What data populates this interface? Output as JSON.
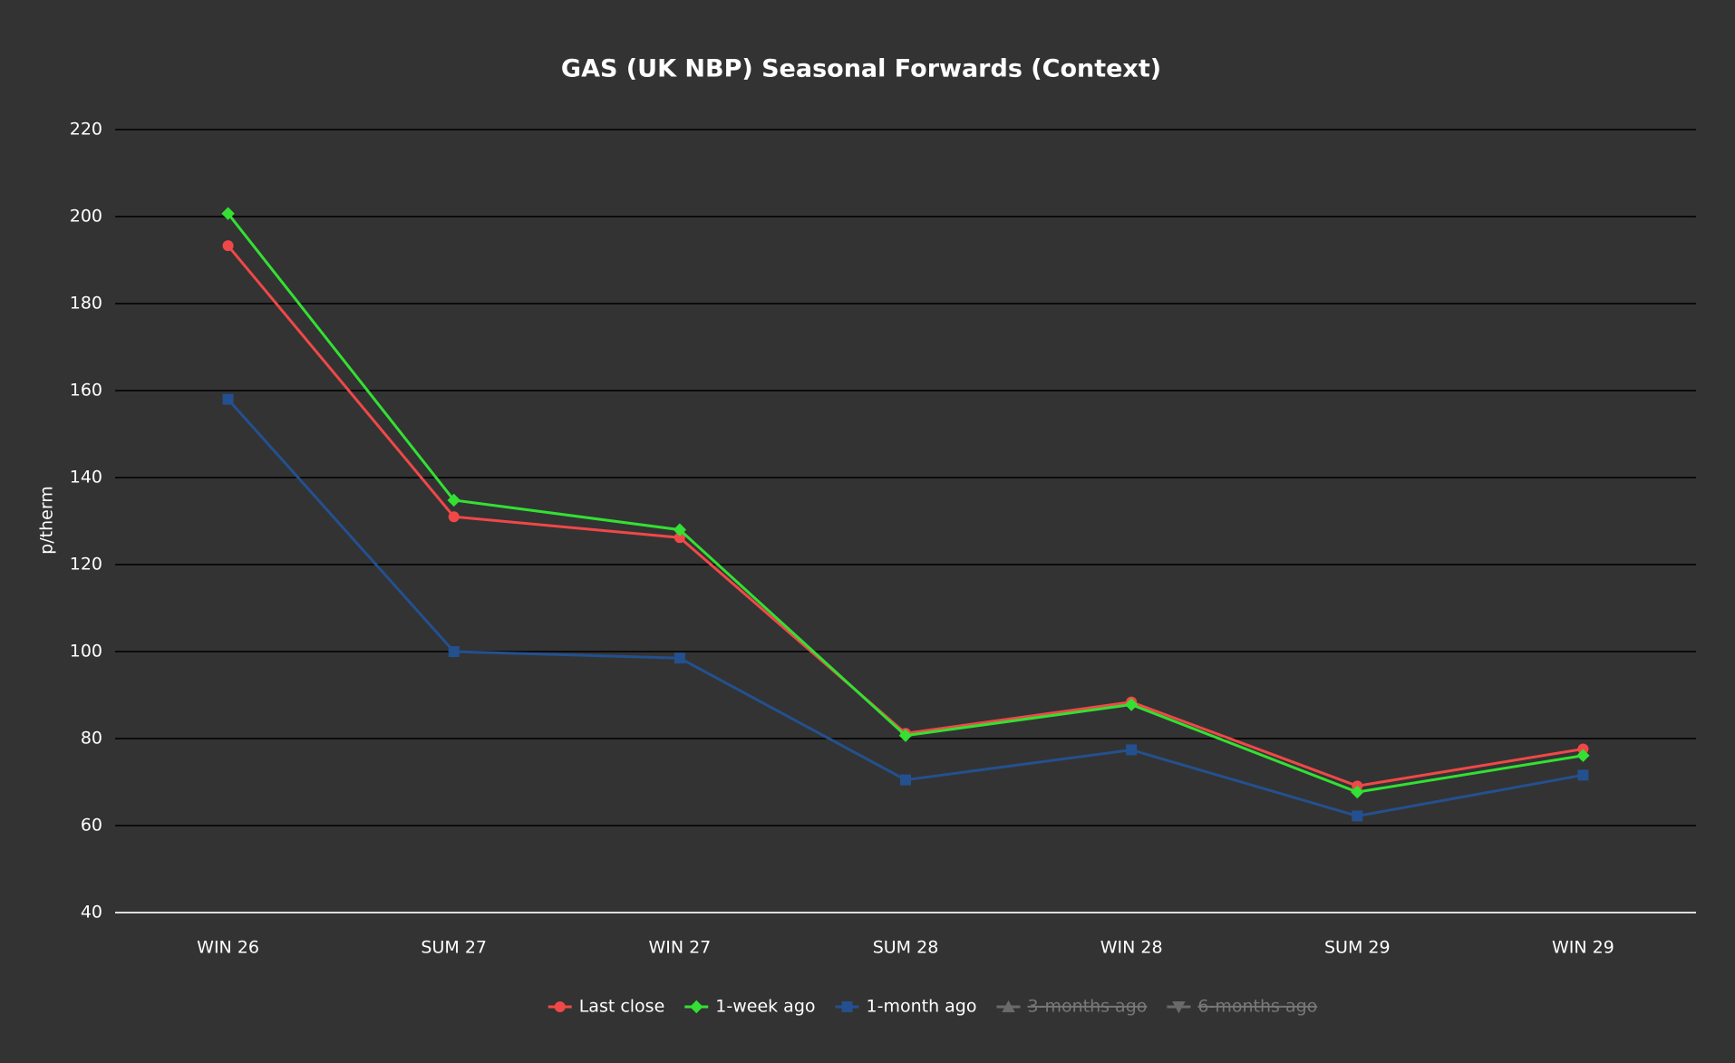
{
  "chart_data": {
    "type": "line",
    "title": "GAS (UK NBP) Seasonal Forwards (Context)",
    "y_label": "p/therm",
    "categories": [
      "WIN 26",
      "SUM 27",
      "WIN 27",
      "SUM 28",
      "WIN 28",
      "SUM 29",
      "WIN 29"
    ],
    "series": [
      {
        "name": "Last close",
        "color": "#f04848",
        "marker": "circle",
        "values": [
          193.3,
          131,
          126.2,
          81.2,
          88.4,
          69.1,
          77.6
        ]
      },
      {
        "name": "1-week ago",
        "color": "#33e033",
        "marker": "diamond",
        "values": [
          200.7,
          134.8,
          128,
          80.7,
          87.8,
          67.7,
          76.1
        ]
      },
      {
        "name": "1-month ago",
        "color": "#24508f",
        "marker": "square",
        "values": [
          158,
          100,
          98.5,
          70.5,
          77.4,
          62.2,
          71.6
        ]
      },
      {
        "name": "3-months ago",
        "color": "#6a6a6a",
        "marker": "triangle",
        "hidden": true,
        "values": [
          null,
          null,
          null,
          null,
          null,
          null,
          null
        ]
      },
      {
        "name": "6-months ago",
        "color": "#6a6a6a",
        "marker": "triangle-down",
        "hidden": true,
        "values": [
          null,
          null,
          null,
          null,
          null,
          null,
          null
        ]
      }
    ],
    "ylim": [
      40,
      220
    ],
    "yticks": [
      40,
      60,
      80,
      100,
      120,
      140,
      160,
      180,
      200,
      220
    ],
    "grid": true,
    "legend": "bottom"
  }
}
